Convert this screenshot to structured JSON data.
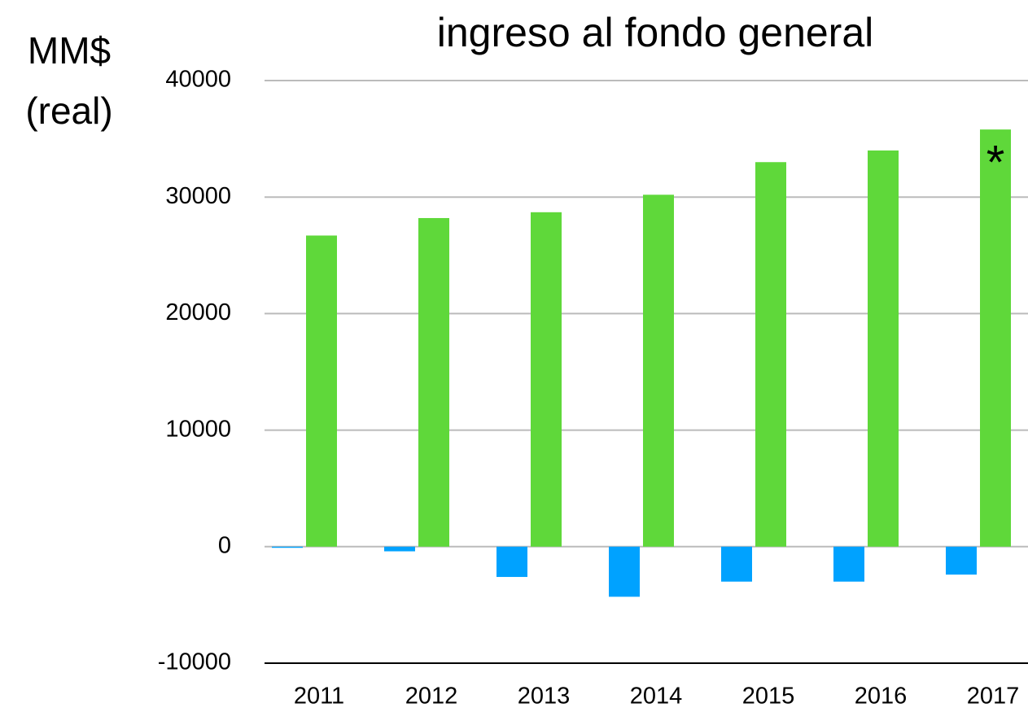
{
  "chart_data": {
    "type": "bar",
    "title": "ingreso al fondo general",
    "ylabel": [
      "MM$",
      "(real)"
    ],
    "categories": [
      "2011",
      "2012",
      "2013",
      "2014",
      "2015",
      "2016",
      "2017"
    ],
    "series": [
      {
        "color": "#00a2ff",
        "values": [
          -100,
          -400,
          -2600,
          -4300,
          -3000,
          -3000,
          -2400
        ]
      },
      {
        "color": "#5fd83a",
        "values": [
          26700,
          28200,
          28700,
          30200,
          33000,
          34000,
          35800
        ]
      }
    ],
    "annotation": "*",
    "ylim": [
      -10000,
      40000
    ],
    "yticks": [
      -10000,
      0,
      10000,
      20000,
      30000,
      40000
    ],
    "grid": true
  }
}
